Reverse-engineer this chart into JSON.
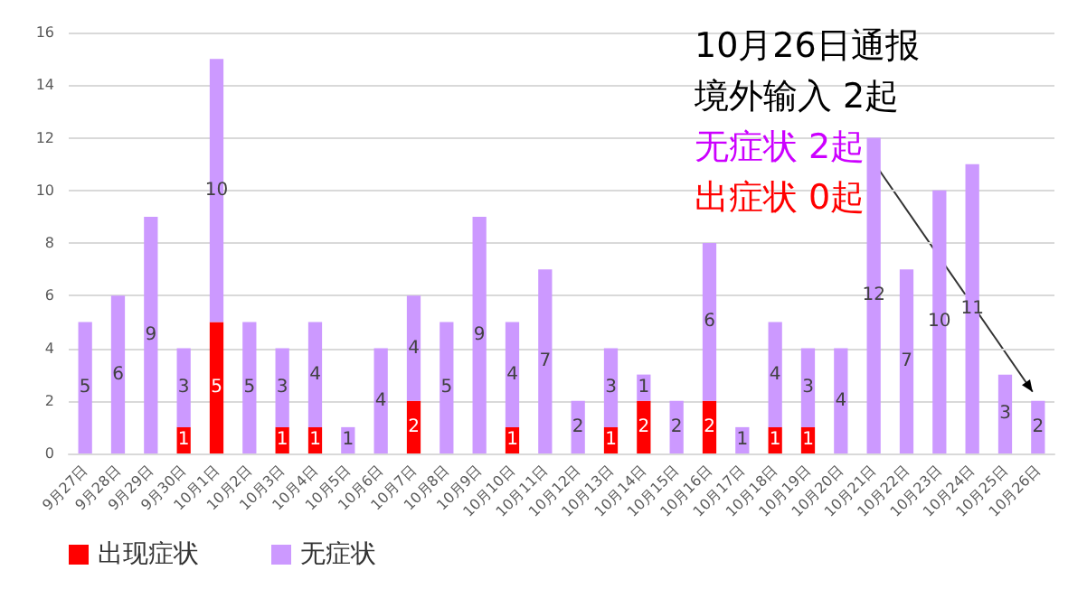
{
  "chart_data": {
    "type": "bar",
    "stacked": true,
    "categories": [
      "9月27日",
      "9月28日",
      "9月29日",
      "9月30日",
      "10月1日",
      "10月2日",
      "10月3日",
      "10月4日",
      "10月5日",
      "10月6日",
      "10月7日",
      "10月8日",
      "10月9日",
      "10月10日",
      "10月11日",
      "10月12日",
      "10月13日",
      "10月14日",
      "10月15日",
      "10月16日",
      "10月17日",
      "10月18日",
      "10月19日",
      "10月20日",
      "10月21日",
      "10月22日",
      "10月23日",
      "10月24日",
      "10月25日",
      "10月26日"
    ],
    "series": [
      {
        "name": "出现症状",
        "color": "#ff0000",
        "values": [
          0,
          0,
          0,
          1,
          5,
          0,
          1,
          1,
          0,
          0,
          2,
          0,
          0,
          1,
          0,
          0,
          1,
          2,
          0,
          2,
          0,
          1,
          1,
          0,
          0,
          0,
          0,
          0,
          0,
          0
        ],
        "value_labels": [
          null,
          null,
          null,
          "1",
          "5",
          null,
          "1",
          "1",
          null,
          null,
          "2",
          null,
          null,
          "1",
          null,
          null,
          "1",
          "2",
          null,
          "2",
          null,
          "1",
          "1",
          null,
          null,
          null,
          null,
          null,
          null,
          null
        ]
      },
      {
        "name": "无症状",
        "color": "#cc99ff",
        "values": [
          5,
          6,
          9,
          3,
          10,
          5,
          3,
          4,
          1,
          4,
          4,
          5,
          9,
          4,
          7,
          2,
          3,
          1,
          2,
          6,
          1,
          4,
          3,
          4,
          12,
          7,
          10,
          11,
          3,
          2
        ],
        "value_labels": [
          "5",
          "6",
          "9",
          "3",
          "10",
          "5",
          "3",
          "4",
          "1",
          "4",
          "4",
          "5",
          "9",
          "4",
          "7",
          "2",
          "3",
          "1",
          "2",
          "6",
          "1",
          "4",
          "3",
          "4",
          "12",
          "7",
          "10",
          "11",
          "3",
          "2"
        ]
      }
    ],
    "ylim": [
      0,
      16
    ],
    "yticks": [
      0,
      2,
      4,
      6,
      8,
      10,
      12,
      14,
      16
    ],
    "grid": "y",
    "legend": "bottom left",
    "annotations": [
      "10月26日通报",
      "境外输入 2起",
      "无症状 2起",
      "出症状 0起"
    ]
  }
}
